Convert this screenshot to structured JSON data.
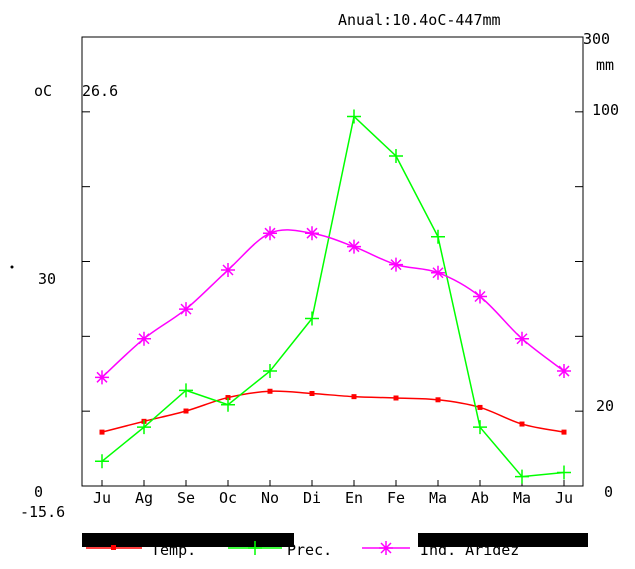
{
  "chart_data": {
    "type": "line",
    "title": "Anual:10.4oC-447mm",
    "categories": [
      "Ju",
      "Ag",
      "Se",
      "Oc",
      "No",
      "Di",
      "En",
      "Fe",
      "Ma",
      "Ab",
      "Ma",
      "Ju"
    ],
    "left_axis": {
      "unit": "oC",
      "max_label": "26.6",
      "mid_label": "30",
      "min_label": "0",
      "min_value_label": "-15.6"
    },
    "right_axis": {
      "top_label": "300",
      "unit": "mm",
      "label_100": "100",
      "label_20": "20",
      "label_0": "0"
    },
    "right_ticks": [
      {
        "label": "100",
        "value": 100
      },
      {
        "label": "20",
        "value": 20
      },
      {
        "label": "0",
        "value": 0
      }
    ],
    "plot_units": {
      "min": 0,
      "max": 100
    },
    "series": [
      {
        "name": "Temp.",
        "color": "#ff0000",
        "marker": "square",
        "values": [
          12.0,
          14.4,
          16.7,
          19.7,
          21.1,
          20.6,
          19.9,
          19.6,
          19.2,
          17.5,
          13.8,
          12.0
        ]
      },
      {
        "name": "Prec.",
        "color": "#00ff00",
        "marker": "plus",
        "values": [
          5.5,
          13.1,
          21.3,
          18.1,
          25.6,
          37.3,
          82.3,
          73.5,
          55.5,
          13.1,
          2.1,
          3.0
        ]
      },
      {
        "name": "Ind. Aridez",
        "color": "#ff00ff",
        "marker": "asterisk",
        "values": [
          24.2,
          32.8,
          39.4,
          48.1,
          56.3,
          56.3,
          53.3,
          49.3,
          47.5,
          42.2,
          32.8,
          25.6
        ]
      }
    ],
    "dry_months_bars": [
      {
        "from": "Ju",
        "to": "No"
      },
      {
        "from": "Ma",
        "to": "Ju"
      }
    ],
    "grid": false,
    "legend_position": "bottom"
  }
}
